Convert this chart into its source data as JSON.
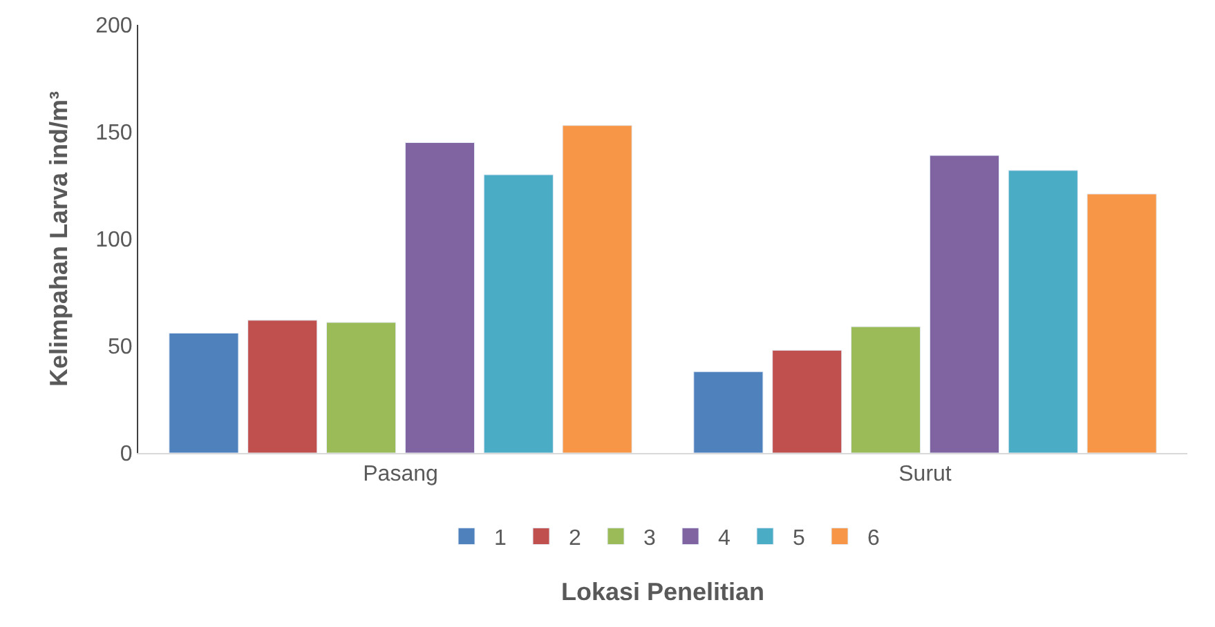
{
  "chart_data": {
    "type": "bar",
    "xlabel": "Lokasi Penelitian",
    "ylabel": "Kelimpahan Larva ind/m³",
    "categories": [
      "Pasang",
      "Surut"
    ],
    "series": [
      {
        "name": "1",
        "color": "#4f81bd",
        "values": [
          56,
          38
        ]
      },
      {
        "name": "2",
        "color": "#c0504d",
        "values": [
          62,
          48
        ]
      },
      {
        "name": "3",
        "color": "#9bbb59",
        "values": [
          61,
          59
        ]
      },
      {
        "name": "4",
        "color": "#8064a2",
        "values": [
          145,
          139
        ]
      },
      {
        "name": "5",
        "color": "#4bacc6",
        "values": [
          130,
          132
        ]
      },
      {
        "name": "6",
        "color": "#f79646",
        "values": [
          153,
          121
        ]
      }
    ],
    "ylim": [
      0,
      200
    ],
    "yticks": [
      0,
      50,
      100,
      150,
      200
    ],
    "grid": false,
    "legend": "bottom"
  }
}
